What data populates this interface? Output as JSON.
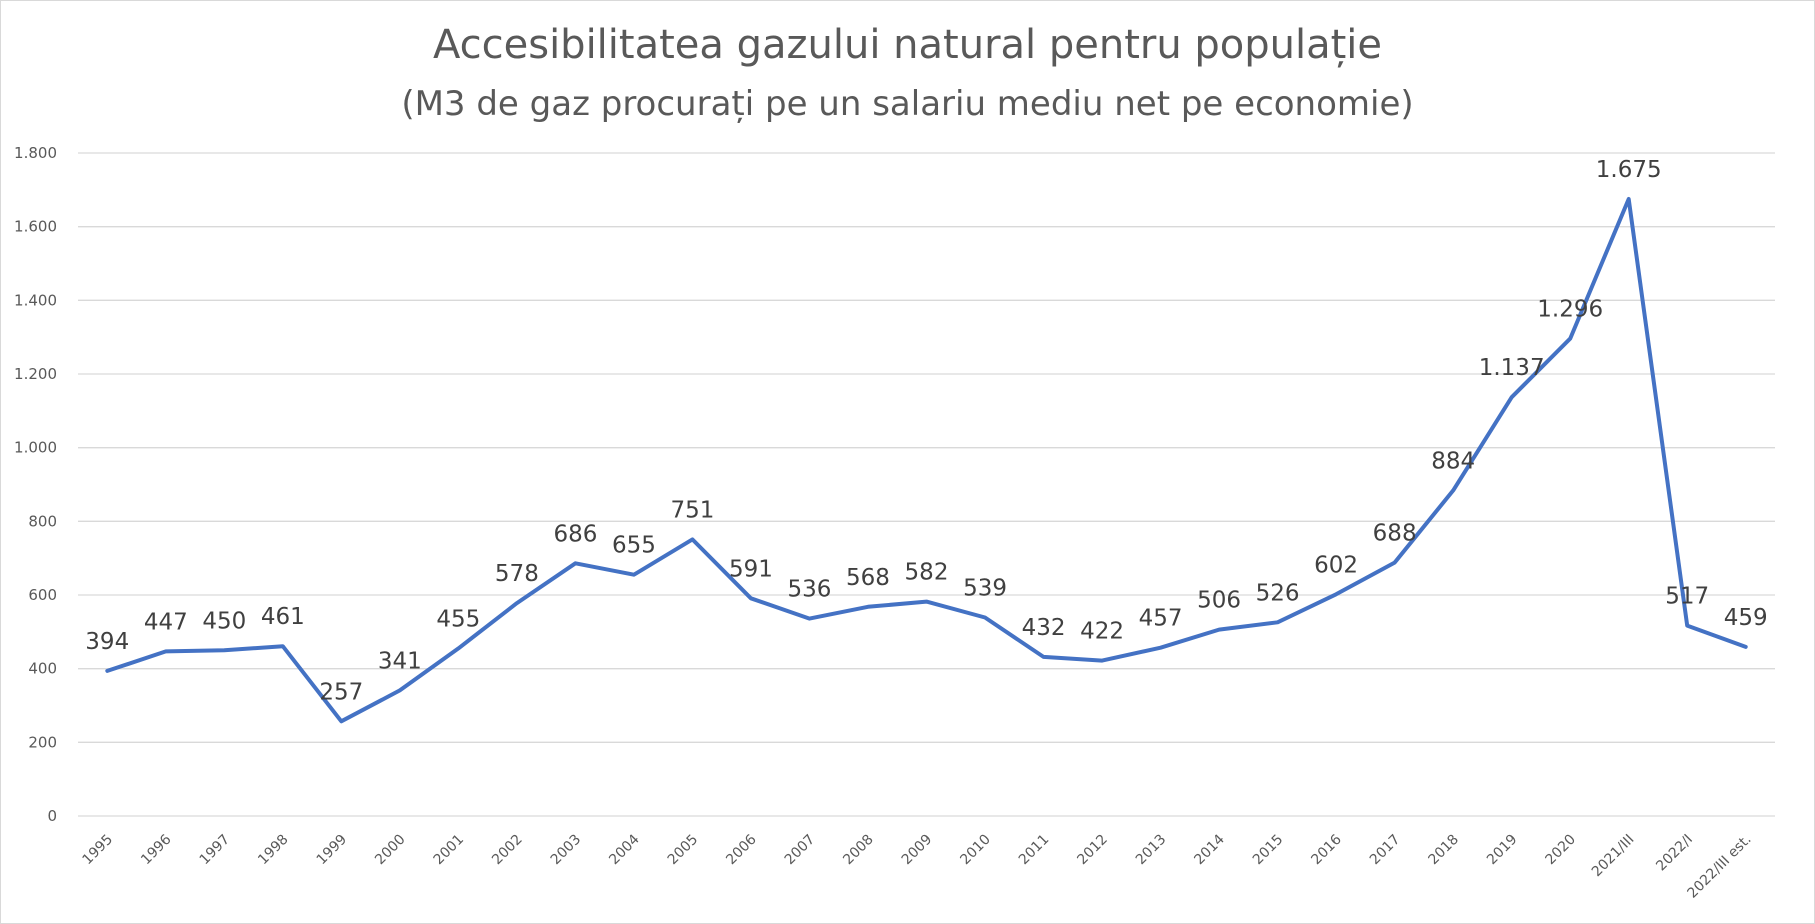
{
  "chart_data": {
    "type": "line",
    "title": "Accesibilitatea gazului natural pentru populație",
    "subtitle": "(M3 de gaz procurați pe un salariu mediu net pe economie)",
    "xlabel": "",
    "ylabel": "",
    "ylim": [
      0,
      1800
    ],
    "yticks": [
      0,
      200,
      400,
      600,
      800,
      1000,
      1200,
      1400,
      1600,
      1800
    ],
    "ytick_labels": [
      "0",
      "200",
      "400",
      "600",
      "800",
      "1.000",
      "1.200",
      "1.400",
      "1.600",
      "1.800"
    ],
    "grid": true,
    "legend": "none",
    "line_color": "#4472c4",
    "categories": [
      "1995",
      "1996",
      "1997",
      "1998",
      "1999",
      "2000",
      "2001",
      "2002",
      "2003",
      "2004",
      "2005",
      "2006",
      "2007",
      "2008",
      "2009",
      "2010",
      "2011",
      "2012",
      "2013",
      "2014",
      "2015",
      "2016",
      "2017",
      "2018",
      "2019",
      "2020",
      "2021/III",
      "2022/I",
      "2022/III est."
    ],
    "values": [
      394,
      447,
      450,
      461,
      257,
      341,
      455,
      578,
      686,
      655,
      751,
      591,
      536,
      568,
      582,
      539,
      432,
      422,
      457,
      506,
      526,
      602,
      688,
      884,
      1137,
      1296,
      1675,
      517,
      459
    ],
    "data_labels": [
      "394",
      "447",
      "450",
      "461",
      "257",
      "341",
      "455",
      "578",
      "686",
      "655",
      "751",
      "591",
      "536",
      "568",
      "582",
      "539",
      "432",
      "422",
      "457",
      "506",
      "526",
      "602",
      "688",
      "884",
      "1.137",
      "1.296",
      "1.675",
      "517",
      "459"
    ]
  }
}
